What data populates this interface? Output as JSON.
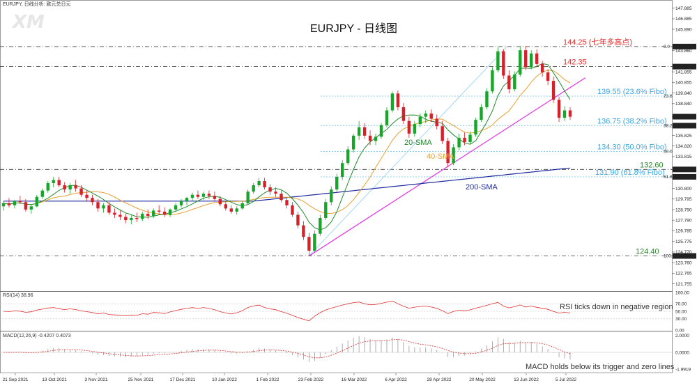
{
  "header": {
    "symbol_info": "EURJPY, 日线分析: 欧元兑日元",
    "title": "EURJPY - 日线图",
    "logo_text": "XM"
  },
  "chart_data": {
    "type": "candlestick",
    "title": "EURJPY - 日线图",
    "price_axis_ticks": [
      "147.885",
      "146.885",
      "145.890",
      "144.250",
      "143.860",
      "142.350",
      "141.855",
      "140.855",
      "139.840",
      "138.840",
      "137.604",
      "136.750",
      "135.825",
      "134.820",
      "133.815",
      "132.600",
      "131.900",
      "130.800",
      "129.795",
      "128.790",
      "127.790",
      "126.785",
      "125.775",
      "124.770",
      "124.400",
      "123.760",
      "122.765",
      "121.755"
    ],
    "price_range": [
      121.2,
      148.4
    ],
    "date_labels": [
      "21 Sep 2021",
      "13 Oct 2021",
      "3 Nov 2021",
      "25 Nov 2021",
      "17 Dec 2021",
      "10 Jan 2022",
      "1 Feb 2022",
      "23 Feb 2022",
      "16 Mar 2022",
      "6 Apr 2022",
      "28 Apr 2022",
      "20 May 2022",
      "13 Jun 2022",
      "5 Jul 2022"
    ],
    "levels": [
      {
        "label": "144.25 (七年多高点)",
        "value": 144.25,
        "color": "#e03030",
        "tag": "144.250"
      },
      {
        "label": "142.35",
        "value": 142.35,
        "color": "#e03030",
        "tag": "142.350"
      },
      {
        "label": "139.55 (23.6% Fibo)",
        "value": 139.55,
        "color": "#3aa6e6"
      },
      {
        "label": "136.75 (38.2% Fibo)",
        "value": 136.75,
        "color": "#3aa6e6",
        "tag": "136.750"
      },
      {
        "label": "134.30 (50.0% Fibo)",
        "value": 134.3,
        "color": "#3aa6e6"
      },
      {
        "label": "132.60",
        "value": 132.6,
        "color": "#2f8a2f",
        "tag": "132.600"
      },
      {
        "label": "131.90 (61.8% Fibo)",
        "value": 131.9,
        "color": "#3aa6e6",
        "tag": "131.900"
      },
      {
        "label": "124.40",
        "value": 124.4,
        "color": "#2f8a2f",
        "tag": "124.400"
      }
    ],
    "current_price": "137.604",
    "fibo_small_labels": [
      "0.0",
      "23.6",
      "38.2",
      "50.0",
      "61.8",
      "100.0"
    ],
    "ma_labels": [
      {
        "name": "20-SMA",
        "color": "#1f8a2a"
      },
      {
        "name": "40-SMA",
        "color": "#e8a030"
      },
      {
        "name": "200-SMA",
        "color": "#1e2aa0"
      }
    ],
    "candles": [
      [
        129.1,
        129.6,
        128.7,
        129.4
      ],
      [
        129.4,
        129.9,
        129.0,
        129.2
      ],
      [
        129.2,
        129.7,
        128.9,
        129.6
      ],
      [
        129.6,
        130.1,
        129.3,
        129.5
      ],
      [
        129.5,
        129.8,
        128.6,
        128.8
      ],
      [
        128.8,
        129.3,
        128.4,
        129.1
      ],
      [
        129.1,
        130.2,
        129.0,
        130.0
      ],
      [
        130.0,
        130.8,
        129.8,
        130.6
      ],
      [
        130.6,
        131.5,
        130.4,
        131.3
      ],
      [
        131.3,
        131.9,
        130.9,
        131.6
      ],
      [
        131.6,
        131.9,
        130.9,
        131.1
      ],
      [
        131.1,
        131.4,
        130.4,
        130.7
      ],
      [
        130.7,
        131.3,
        130.3,
        131.1
      ],
      [
        131.1,
        131.6,
        130.5,
        130.8
      ],
      [
        130.8,
        131.1,
        130.0,
        130.2
      ],
      [
        130.2,
        130.6,
        129.6,
        129.9
      ],
      [
        129.9,
        130.2,
        129.2,
        129.5
      ],
      [
        129.5,
        129.8,
        128.6,
        128.9
      ],
      [
        128.9,
        129.4,
        128.5,
        129.2
      ],
      [
        129.2,
        129.5,
        128.3,
        128.5
      ],
      [
        128.5,
        128.9,
        128.0,
        128.3
      ],
      [
        128.3,
        128.7,
        127.8,
        128.1
      ],
      [
        128.1,
        128.4,
        127.5,
        127.8
      ],
      [
        127.8,
        128.3,
        127.4,
        128.0
      ],
      [
        128.0,
        128.5,
        127.6,
        127.9
      ],
      [
        127.9,
        128.6,
        127.7,
        128.4
      ],
      [
        128.4,
        128.8,
        127.9,
        128.2
      ],
      [
        128.2,
        128.9,
        128.0,
        128.7
      ],
      [
        128.7,
        129.2,
        128.3,
        128.6
      ],
      [
        128.6,
        129.0,
        128.1,
        128.3
      ],
      [
        128.3,
        128.9,
        128.1,
        128.8
      ],
      [
        128.8,
        129.4,
        128.6,
        129.2
      ],
      [
        129.2,
        129.8,
        129.0,
        129.6
      ],
      [
        129.6,
        130.0,
        129.2,
        129.9
      ],
      [
        129.9,
        130.4,
        129.6,
        130.2
      ],
      [
        130.2,
        130.6,
        129.8,
        130.0
      ],
      [
        130.0,
        130.5,
        129.7,
        130.3
      ],
      [
        130.3,
        130.6,
        129.8,
        130.1
      ],
      [
        130.1,
        130.5,
        129.6,
        129.8
      ],
      [
        129.8,
        130.1,
        129.1,
        129.3
      ],
      [
        129.3,
        129.6,
        128.7,
        128.9
      ],
      [
        128.9,
        129.2,
        128.4,
        128.6
      ],
      [
        128.6,
        129.1,
        128.3,
        128.9
      ],
      [
        128.9,
        129.6,
        128.8,
        129.4
      ],
      [
        129.4,
        130.7,
        129.3,
        130.5
      ],
      [
        130.5,
        131.3,
        130.3,
        131.1
      ],
      [
        131.1,
        131.8,
        130.9,
        131.5
      ],
      [
        131.5,
        131.8,
        130.7,
        130.9
      ],
      [
        130.9,
        131.2,
        130.2,
        130.5
      ],
      [
        130.5,
        130.9,
        130.0,
        130.3
      ],
      [
        130.3,
        130.6,
        129.5,
        129.7
      ],
      [
        129.7,
        130.0,
        128.9,
        129.2
      ],
      [
        129.2,
        129.5,
        128.1,
        128.3
      ],
      [
        128.3,
        128.6,
        127.0,
        127.3
      ],
      [
        127.3,
        127.7,
        125.9,
        126.2
      ],
      [
        126.2,
        126.6,
        124.4,
        124.9
      ],
      [
        124.9,
        126.8,
        124.7,
        126.5
      ],
      [
        126.5,
        128.3,
        126.3,
        128.0
      ],
      [
        128.0,
        129.8,
        127.8,
        129.5
      ],
      [
        129.5,
        131.0,
        129.2,
        130.7
      ],
      [
        130.7,
        132.2,
        130.5,
        131.9
      ],
      [
        131.9,
        133.5,
        131.6,
        133.2
      ],
      [
        133.2,
        134.8,
        133.0,
        134.5
      ],
      [
        134.5,
        136.0,
        134.2,
        135.8
      ],
      [
        135.8,
        137.2,
        135.4,
        136.6
      ],
      [
        136.6,
        137.0,
        135.5,
        135.8
      ],
      [
        135.8,
        136.3,
        134.9,
        135.3
      ],
      [
        135.3,
        136.0,
        134.9,
        135.7
      ],
      [
        135.7,
        137.0,
        135.5,
        136.8
      ],
      [
        136.8,
        138.5,
        136.6,
        138.2
      ],
      [
        138.2,
        140.0,
        138.0,
        139.8
      ],
      [
        139.8,
        140.1,
        138.2,
        138.5
      ],
      [
        138.5,
        138.9,
        136.9,
        137.2
      ],
      [
        137.2,
        137.6,
        135.6,
        136.0
      ],
      [
        136.0,
        137.2,
        135.7,
        136.9
      ],
      [
        136.9,
        137.9,
        136.6,
        137.6
      ],
      [
        137.6,
        138.2,
        137.0,
        137.9
      ],
      [
        137.9,
        138.3,
        137.1,
        137.4
      ],
      [
        137.4,
        137.8,
        136.4,
        136.7
      ],
      [
        136.7,
        137.2,
        135.0,
        135.3
      ],
      [
        135.3,
        135.6,
        132.8,
        133.2
      ],
      [
        133.2,
        135.0,
        133.0,
        134.7
      ],
      [
        134.7,
        136.0,
        134.4,
        135.6
      ],
      [
        135.6,
        136.1,
        134.9,
        135.2
      ],
      [
        135.2,
        136.2,
        135.0,
        135.9
      ],
      [
        135.9,
        137.5,
        135.7,
        137.3
      ],
      [
        137.3,
        138.8,
        137.1,
        138.5
      ],
      [
        138.5,
        140.3,
        138.3,
        140.0
      ],
      [
        140.0,
        142.3,
        139.8,
        142.0
      ],
      [
        142.0,
        144.2,
        141.8,
        143.8
      ],
      [
        143.8,
        144.0,
        141.2,
        141.5
      ],
      [
        141.5,
        142.0,
        139.8,
        140.2
      ],
      [
        140.2,
        141.9,
        140.0,
        141.6
      ],
      [
        141.6,
        144.3,
        141.4,
        143.9
      ],
      [
        143.9,
        144.3,
        142.0,
        142.3
      ],
      [
        142.3,
        143.9,
        142.1,
        143.6
      ],
      [
        143.6,
        144.0,
        142.3,
        142.6
      ],
      [
        142.6,
        142.9,
        141.4,
        141.8
      ],
      [
        141.8,
        142.1,
        140.6,
        141.0
      ],
      [
        141.0,
        141.4,
        138.9,
        139.2
      ],
      [
        139.2,
        139.5,
        137.1,
        137.5
      ],
      [
        137.5,
        138.6,
        137.2,
        138.2
      ],
      [
        138.2,
        138.5,
        137.3,
        137.6
      ]
    ],
    "indicators": [
      {
        "name": "RSI(14) 38.96",
        "type": "line",
        "ticks": [
          "100.00",
          "70.00",
          "50.00",
          "30.00",
          "0.00"
        ],
        "annotation": "RSI ticks down in negative region"
      },
      {
        "name": "MACD(12,26,9) -0.4207 0.4073",
        "type": "histogram+signal",
        "ticks": [
          "2.0000",
          "0.0000",
          "-1.9919"
        ],
        "annotation": "MACD holds below its trigger and zero lines"
      }
    ]
  }
}
